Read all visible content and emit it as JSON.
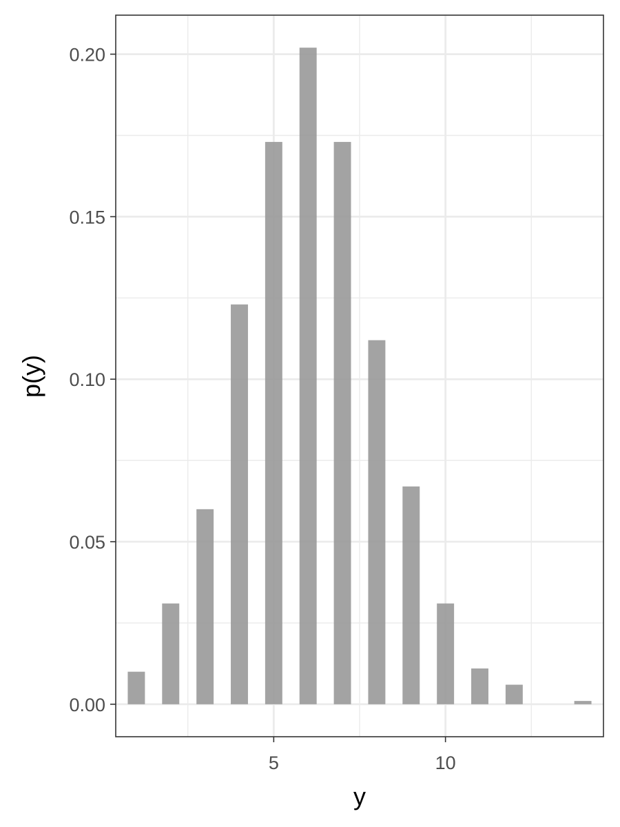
{
  "chart_data": {
    "type": "bar",
    "xlabel": "y",
    "ylabel": "p(y)",
    "x": [
      1,
      2,
      3,
      4,
      5,
      6,
      7,
      8,
      9,
      10,
      11,
      12,
      13,
      14
    ],
    "values": [
      0.01,
      0.031,
      0.06,
      0.123,
      0.173,
      0.202,
      0.173,
      0.112,
      0.067,
      0.031,
      0.011,
      0.006,
      0.0,
      0.001
    ],
    "xlim": [
      0.4,
      14.6
    ],
    "ylim": [
      -0.01,
      0.212
    ],
    "x_ticks": [
      5,
      10
    ],
    "x_tick_labels": [
      "5",
      "10"
    ],
    "y_ticks": [
      0,
      0.05,
      0.1,
      0.15,
      0.2
    ],
    "y_tick_labels": [
      "0.00",
      "0.05",
      "0.10",
      "0.15",
      "0.20"
    ],
    "grid": true,
    "legend": "none",
    "colors": {
      "bar": "#999999",
      "grid": "#ebebeb",
      "panel_border": "#333333",
      "background": "#ffffff"
    }
  }
}
